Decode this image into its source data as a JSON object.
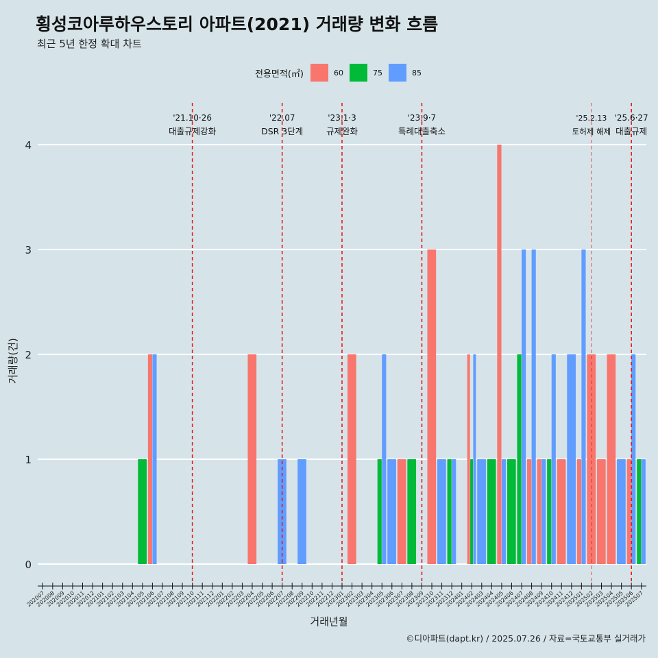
{
  "title": "횡성코아루하우스토리 아파트(2021) 거래량 변화 흐름",
  "subtitle": "최근 5년 한정 확대 차트",
  "legend_title": "전용면적(㎡)",
  "caption": "©디아파트(dapt.kr) / 2025.07.26 / 자료=국토교통부 실거래가",
  "colors": {
    "60": "#f8766d",
    "75": "#00ba38",
    "85": "#619cff",
    "background": "#d6e4ea",
    "event_line": "#e41a1c"
  },
  "chart_data": {
    "type": "bar",
    "title": "횡성코아루하우스토리 아파트(2021) 거래량 변화 흐름",
    "subtitle": "최근 5년 한정 확대 차트",
    "xlabel": "거래년월",
    "ylabel": "거래량(건)",
    "ylim": [
      0,
      4
    ],
    "yticks": [
      0,
      1,
      2,
      3,
      4
    ],
    "grid": true,
    "legend_position": "top",
    "categories": [
      "202007",
      "202008",
      "202009",
      "202010",
      "202011",
      "202012",
      "202101",
      "202102",
      "202103",
      "202104",
      "202105",
      "202106",
      "202107",
      "202108",
      "202109",
      "202110",
      "202111",
      "202112",
      "202201",
      "202202",
      "202203",
      "202204",
      "202205",
      "202206",
      "202207",
      "202208",
      "202209",
      "202210",
      "202211",
      "202212",
      "202301",
      "202302",
      "202303",
      "202304",
      "202305",
      "202306",
      "202307",
      "202308",
      "202309",
      "202310",
      "202311",
      "202312",
      "202401",
      "202402",
      "202403",
      "202404",
      "202405",
      "202406",
      "202407",
      "202408",
      "202409",
      "202410",
      "202411",
      "202412",
      "202501",
      "202502",
      "202503",
      "202504",
      "202505",
      "202506",
      "202507"
    ],
    "series": [
      {
        "name": "60",
        "color": "#f8766d",
        "values": [
          0,
          0,
          0,
          0,
          0,
          0,
          0,
          0,
          0,
          0,
          0,
          2,
          0,
          0,
          0,
          0,
          0,
          0,
          0,
          0,
          0,
          2,
          0,
          0,
          0,
          0,
          0,
          0,
          0,
          0,
          0,
          2,
          0,
          0,
          0,
          0,
          1,
          0,
          0,
          3,
          0,
          0,
          0,
          2,
          0,
          0,
          4,
          0,
          0,
          1,
          1,
          0,
          1,
          0,
          1,
          2,
          1,
          2,
          0,
          1,
          0
        ]
      },
      {
        "name": "75",
        "color": "#00ba38",
        "values": [
          0,
          0,
          0,
          0,
          0,
          0,
          0,
          0,
          0,
          0,
          1,
          0,
          0,
          0,
          0,
          0,
          0,
          0,
          0,
          0,
          0,
          0,
          0,
          0,
          0,
          0,
          0,
          0,
          0,
          0,
          0,
          0,
          0,
          0,
          1,
          0,
          0,
          1,
          0,
          0,
          0,
          1,
          0,
          1,
          0,
          1,
          0,
          1,
          2,
          0,
          0,
          1,
          0,
          0,
          0,
          0,
          0,
          0,
          0,
          0,
          1
        ]
      },
      {
        "name": "85",
        "color": "#619cff",
        "values": [
          0,
          0,
          0,
          0,
          0,
          0,
          0,
          0,
          0,
          0,
          0,
          2,
          0,
          0,
          0,
          0,
          0,
          0,
          0,
          0,
          0,
          0,
          0,
          0,
          1,
          0,
          1,
          0,
          0,
          0,
          0,
          0,
          0,
          0,
          2,
          1,
          0,
          0,
          0,
          0,
          1,
          1,
          0,
          2,
          1,
          0,
          1,
          0,
          3,
          3,
          1,
          2,
          0,
          2,
          3,
          0,
          0,
          0,
          1,
          2,
          1
        ]
      }
    ],
    "events": [
      {
        "category": "202110",
        "date": "'21.10·26",
        "label": "대출규제강화"
      },
      {
        "category": "202207",
        "date": "'22.07",
        "label": "DSR 3단계"
      },
      {
        "category": "202301",
        "date": "'23.1·3",
        "label": "규제완화"
      },
      {
        "category": "202309",
        "date": "'23.9·7",
        "label": "특례대출축소"
      },
      {
        "category": "202502",
        "date": "'25.2.13",
        "label": "토허제 해제"
      },
      {
        "category": "202506",
        "date": "'25.6·27",
        "label": "대출규제"
      }
    ]
  }
}
